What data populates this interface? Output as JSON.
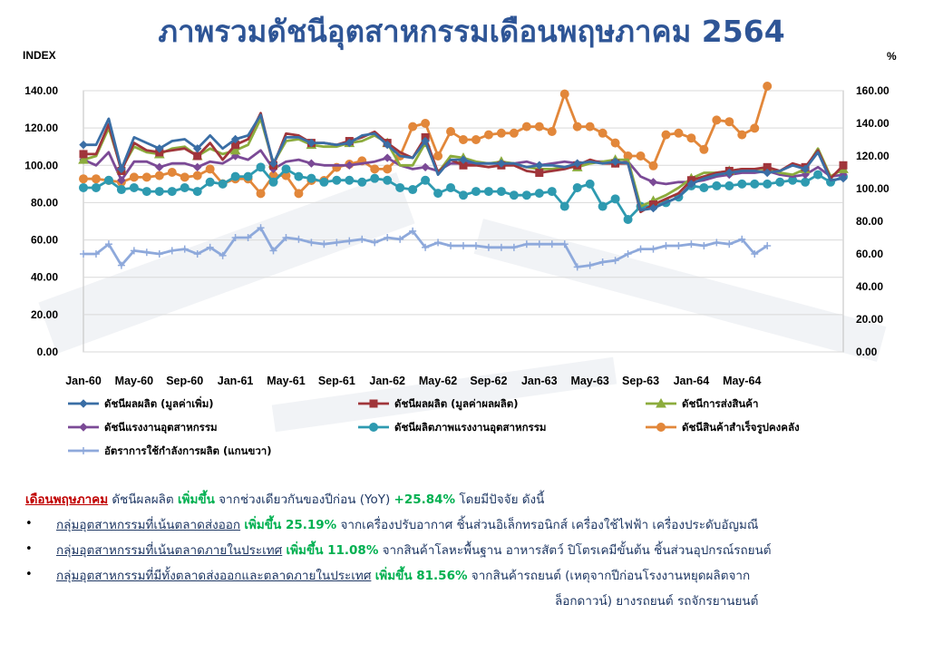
{
  "title": "ภาพรวมดัชนีอุตสาหกรรมเดือนพฤษภาคม 2564",
  "chart_data": {
    "type": "line",
    "left_axis_label": "INDEX",
    "right_axis_label": "%",
    "ylim_left": [
      0,
      140
    ],
    "ylim_right": [
      0,
      160
    ],
    "left_ticks": [
      "0.00",
      "20.00",
      "40.00",
      "60.00",
      "80.00",
      "100.00",
      "120.00",
      "140.00"
    ],
    "right_ticks": [
      "0.00",
      "20.00",
      "40.00",
      "60.00",
      "80.00",
      "100.00",
      "120.00",
      "140.00",
      "160.00"
    ],
    "x_tick_labels": [
      "Jan-60",
      "May-60",
      "Sep-60",
      "Jan-61",
      "May-61",
      "Sep-61",
      "Jan-62",
      "May-62",
      "Sep-62",
      "Jan-63",
      "May-63",
      "Sep-63",
      "Jan-64",
      "May-64"
    ],
    "grid": true,
    "legend_position": "bottom",
    "series": [
      {
        "name": "ดัชนีผลผลิต (มูลค่าเพิ่ม)",
        "color": "#3A6EA5",
        "marker": "diamond",
        "axis": "left",
        "values": [
          111,
          111,
          125,
          98,
          115,
          112,
          109,
          113,
          114,
          109,
          116,
          109,
          114,
          116,
          127,
          101,
          115,
          115,
          112,
          112,
          111,
          112,
          116,
          117,
          111,
          105,
          104,
          113,
          95,
          103,
          103,
          101,
          101,
          101,
          101,
          99,
          100,
          100,
          99,
          101,
          102,
          101,
          102,
          101,
          76,
          77,
          80,
          83,
          90,
          93,
          95,
          96,
          97,
          97,
          96,
          97,
          100,
          98,
          107,
          92,
          93
        ]
      },
      {
        "name": "ดัชนีผลผลิต (มูลค่าผลผลิต)",
        "color": "#A0353A",
        "marker": "square",
        "axis": "left",
        "values": [
          106,
          106,
          122,
          97,
          112,
          108,
          107,
          108,
          109,
          105,
          112,
          103,
          111,
          114,
          128,
          100,
          117,
          116,
          112,
          112,
          111,
          113,
          115,
          118,
          112,
          107,
          104,
          115,
          96,
          103,
          100,
          100,
          99,
          100,
          100,
          97,
          96,
          97,
          98,
          100,
          103,
          101,
          101,
          101,
          75,
          79,
          82,
          85,
          92,
          94,
          96,
          97,
          98,
          98,
          99,
          97,
          101,
          99,
          108,
          93,
          100
        ]
      },
      {
        "name": "ดัชนีการส่งสินค้า",
        "color": "#8CAC3D",
        "marker": "triangle",
        "axis": "left",
        "values": [
          103,
          105,
          120,
          98,
          110,
          107,
          106,
          109,
          110,
          105,
          109,
          106,
          108,
          111,
          125,
          101,
          113,
          114,
          111,
          110,
          110,
          112,
          113,
          116,
          112,
          100,
          100,
          112,
          96,
          105,
          104,
          102,
          101,
          102,
          101,
          99,
          98,
          98,
          99,
          99,
          101,
          102,
          103,
          103,
          78,
          81,
          84,
          88,
          93,
          96,
          96,
          97,
          98,
          98,
          98,
          96,
          95,
          98,
          109,
          94,
          98
        ]
      },
      {
        "name": "ดัชนีแรงงานอุตสาหกรรม",
        "color": "#7B4A96",
        "marker": "diamond",
        "axis": "left",
        "values": [
          103,
          100,
          107,
          92,
          102,
          102,
          99,
          101,
          101,
          99,
          102,
          101,
          105,
          103,
          108,
          98,
          102,
          103,
          101,
          100,
          100,
          100,
          101,
          102,
          104,
          100,
          98,
          99,
          97,
          101,
          101,
          101,
          101,
          101,
          101,
          102,
          100,
          101,
          102,
          101,
          102,
          102,
          101,
          102,
          94,
          91,
          90,
          91,
          91,
          92,
          94,
          95,
          96,
          96,
          97,
          95,
          94,
          95,
          99,
          94,
          95
        ]
      },
      {
        "name": "ดัชนีผลิตภาพแรงงานอุตสาหกรรม",
        "color": "#2E9AB0",
        "marker": "circle",
        "axis": "left",
        "values": [
          88,
          88,
          92,
          87,
          88,
          86,
          86,
          86,
          88,
          86,
          91,
          90,
          94,
          94,
          99,
          91,
          98,
          94,
          93,
          91,
          92,
          92,
          91,
          93,
          92,
          88,
          87,
          92,
          85,
          88,
          84,
          86,
          86,
          86,
          84,
          84,
          85,
          86,
          78,
          88,
          90,
          78,
          82,
          71,
          78,
          78,
          80,
          83,
          89,
          88,
          89,
          89,
          90,
          90,
          90,
          91,
          92,
          91,
          95,
          91,
          94
        ]
      },
      {
        "name": "ดัชนีสินค้าสำเร็จรูปคงคลัง",
        "color": "#E2873A",
        "marker": "circle",
        "axis": "right",
        "values": [
          106,
          106,
          105,
          104,
          107,
          107,
          108,
          110,
          107,
          108,
          112,
          103,
          106,
          106,
          97,
          108,
          108,
          97,
          105,
          105,
          113,
          115,
          117,
          112,
          112,
          120,
          138,
          140,
          120,
          135,
          130,
          130,
          133,
          134,
          134,
          138,
          138,
          135,
          158,
          138,
          138,
          134,
          128,
          120,
          120,
          114,
          133,
          134,
          131,
          124,
          142,
          141,
          133,
          137,
          165
        ]
      },
      {
        "name": "อัตราการใช้กำลังการผลิต (แกนขวา)",
        "color": "#8EA9DB",
        "marker": "plus",
        "axis": "right",
        "values": [
          60,
          60,
          66,
          53,
          62,
          61,
          60,
          62,
          63,
          60,
          64,
          59,
          70,
          70,
          76,
          62,
          70,
          69,
          67,
          66,
          67,
          68,
          69,
          67,
          70,
          69,
          74,
          64,
          67,
          65,
          65,
          65,
          64,
          64,
          64,
          66,
          66,
          66,
          66,
          52,
          53,
          55,
          56,
          60,
          63,
          63,
          65,
          65,
          66,
          65,
          67,
          66,
          69,
          60,
          65
        ]
      }
    ]
  },
  "text": {
    "line1_label": "เดือนพฤษภาคม",
    "line1_part1": " ดัชนีผลผลิต ",
    "line1_up": "เพิ่มขึ้น",
    "line1_part2": " จากช่วงเดียวกันของปีก่อน (YoY) ",
    "line1_value": "+25.84%",
    "line1_part3": " โดยมีปัจจัย ดังนี้",
    "b1_group": "กลุ่มอุตสาหกรรมที่เน้นตลาดส่งออก",
    "b1_up": "เพิ่มขึ้น 25.19%",
    "b1_rest": " จากเครื่องปรับอากาศ ชิ้นส่วนอิเล็กทรอนิกส์ เครื่องใช้ไฟฟ้า เครื่องประดับอัญมณี",
    "b2_group": "กลุ่มอุตสาหกรรมที่เน้นตลาดภายในประเทศ",
    "b2_up": "เพิ่มขึ้น 11.08%",
    "b2_rest": " จากสินค้าโลหะพื้นฐาน อาหารสัตว์ ปิโตรเคมีขั้นต้น ชิ้นส่วนอุปกรณ์รถยนต์",
    "b3_group": "กลุ่มอุตสาหกรรมที่มีทั้งตลาดส่งออกและตลาดภายในประเทศ",
    "b3_up": "เพิ่มขึ้น 81.56%",
    "b3_rest": " จากสินค้ารถยนต์ (เหตุจากปีก่อนโรงงานหยุดผลิตจาก",
    "b3_rest2": "ล็อกดาวน์) ยางรถยนต์ รถจักรยานยนต์",
    "bullet": "•"
  }
}
